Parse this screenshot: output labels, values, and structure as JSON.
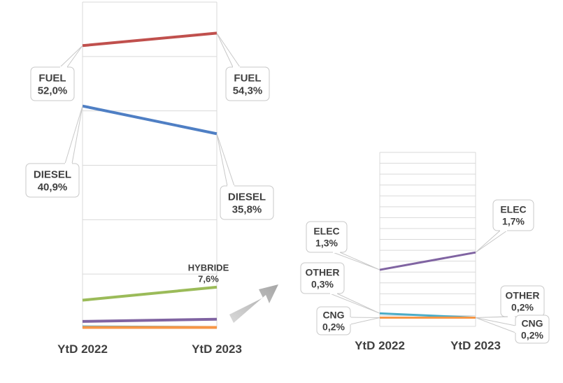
{
  "chart_data": [
    {
      "type": "line",
      "categories": [
        "YtD 2022",
        "YtD 2023"
      ],
      "ylim": [
        0,
        60
      ],
      "grid": true,
      "series": [
        {
          "name": "FUEL",
          "values": [
            52.0,
            54.3
          ],
          "color": "#c0504d",
          "labels": [
            "FUEL\n52,0%",
            "FUEL\n54,3%"
          ]
        },
        {
          "name": "DIESEL",
          "values": [
            40.9,
            35.8
          ],
          "color": "#4f7fc4",
          "labels": [
            "DIESEL\n40,9%",
            "DIESEL\n35,8%"
          ]
        },
        {
          "name": "HYBRIDE",
          "values": [
            5.2,
            7.6
          ],
          "color": "#9bbb59",
          "labels": [
            "",
            "HYBRIDE\n7,6%"
          ]
        },
        {
          "name": "ELEC",
          "values": [
            1.3,
            1.7
          ],
          "color": "#8064a2",
          "labels": [
            "",
            ""
          ]
        },
        {
          "name": "OTHER",
          "values": [
            0.3,
            0.2
          ],
          "color": "#4bacc6",
          "labels": [
            "",
            ""
          ]
        },
        {
          "name": "CNG",
          "values": [
            0.2,
            0.2
          ],
          "color": "#f79646",
          "labels": [
            "",
            ""
          ]
        }
      ]
    },
    {
      "type": "line",
      "categories": [
        "YtD 2022",
        "YtD 2023"
      ],
      "ylim": [
        0,
        4
      ],
      "grid": true,
      "series": [
        {
          "name": "ELEC",
          "values": [
            1.3,
            1.7
          ],
          "color": "#8064a2",
          "labels": [
            "ELEC\n1,3%",
            "ELEC\n1,7%"
          ]
        },
        {
          "name": "OTHER",
          "values": [
            0.3,
            0.2
          ],
          "color": "#4bacc6",
          "labels": [
            "OTHER\n0,3%",
            "OTHER\n0,2%"
          ]
        },
        {
          "name": "CNG",
          "values": [
            0.2,
            0.2
          ],
          "color": "#f79646",
          "labels": [
            "CNG\n0,2%",
            "CNG\n0,2%"
          ]
        }
      ]
    }
  ]
}
